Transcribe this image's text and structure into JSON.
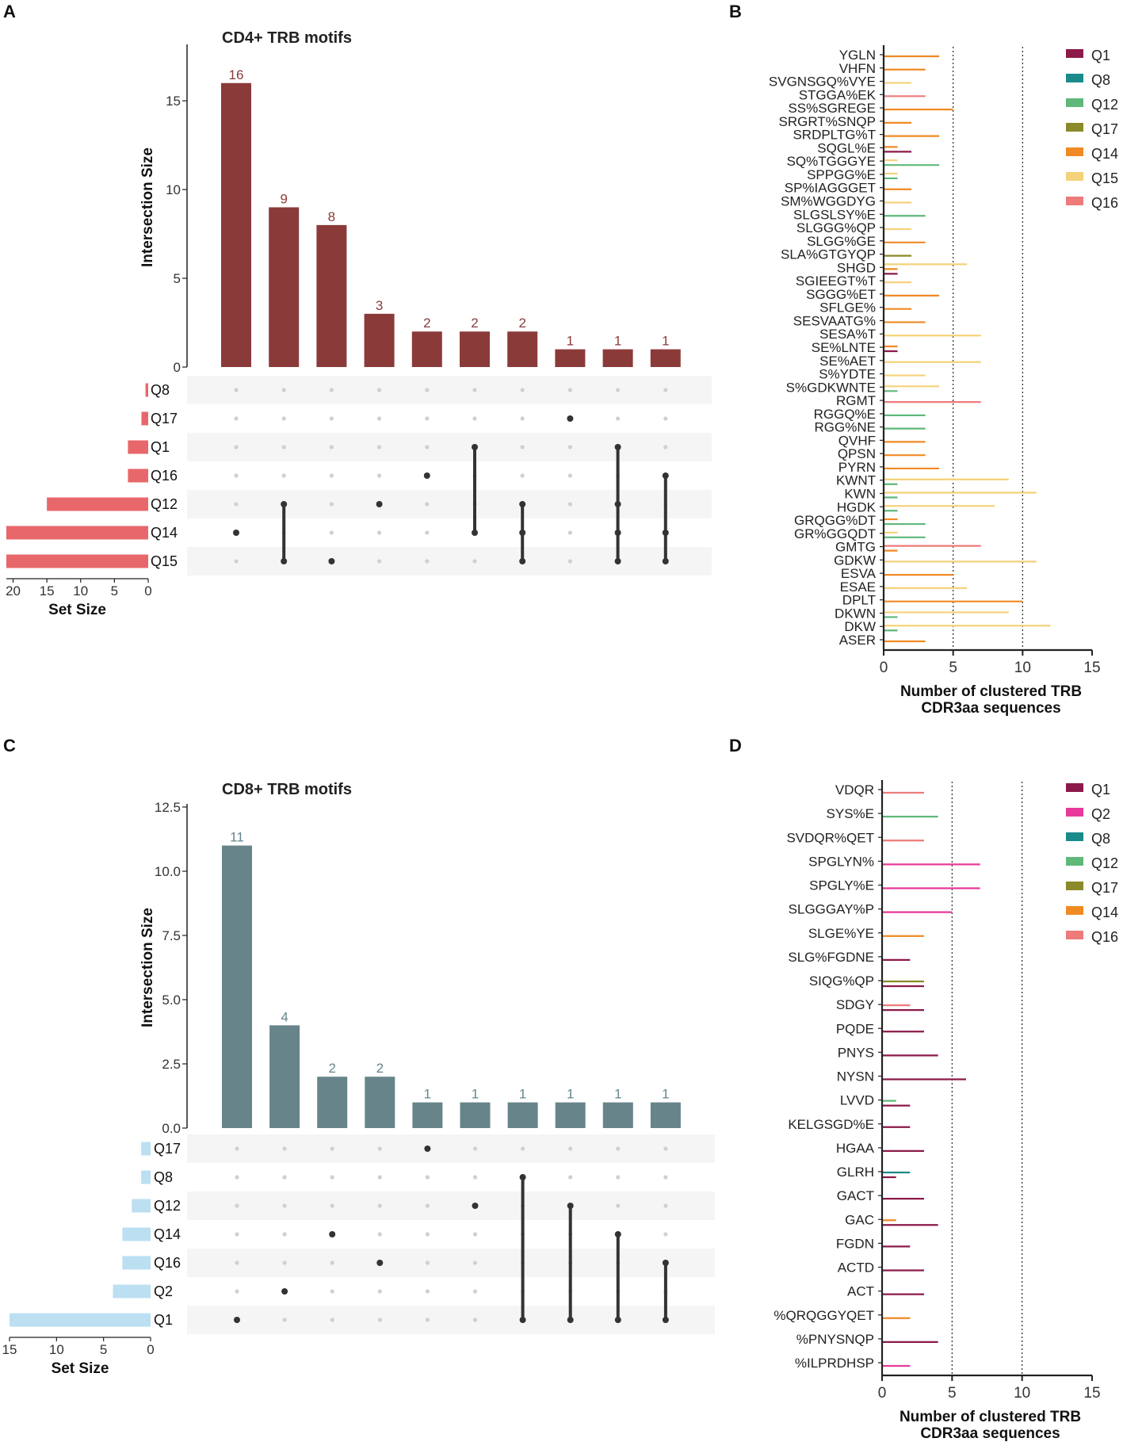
{
  "panels": {
    "A": "A",
    "B": "B",
    "C": "C",
    "D": "D"
  },
  "chart_data": [
    {
      "type": "bar",
      "subtype": "upset",
      "panel": "A",
      "title": "CD4+ TRB motifs",
      "ylabel": "Intersection Size",
      "set_size_label": "Set Size",
      "bar_color": "#8b3a3a",
      "set_bar_color": "#e8676a",
      "ylim": [
        0,
        18
      ],
      "yticks": [
        0,
        5,
        10,
        15
      ],
      "set_xlim": [
        0,
        21
      ],
      "set_xticks": [
        20,
        15,
        10,
        5,
        0
      ],
      "sets": [
        {
          "name": "Q8",
          "size": 0.4
        },
        {
          "name": "Q17",
          "size": 1
        },
        {
          "name": "Q1",
          "size": 3
        },
        {
          "name": "Q16",
          "size": 3
        },
        {
          "name": "Q12",
          "size": 15
        },
        {
          "name": "Q14",
          "size": 21
        },
        {
          "name": "Q15",
          "size": 21
        }
      ],
      "intersections": [
        {
          "sets": [
            "Q14"
          ],
          "size": 16
        },
        {
          "sets": [
            "Q12",
            "Q15"
          ],
          "size": 9
        },
        {
          "sets": [
            "Q15"
          ],
          "size": 8
        },
        {
          "sets": [
            "Q12"
          ],
          "size": 3
        },
        {
          "sets": [
            "Q16"
          ],
          "size": 2
        },
        {
          "sets": [
            "Q1",
            "Q14"
          ],
          "size": 2
        },
        {
          "sets": [
            "Q12",
            "Q14",
            "Q15"
          ],
          "size": 2
        },
        {
          "sets": [
            "Q17"
          ],
          "size": 1
        },
        {
          "sets": [
            "Q1",
            "Q12",
            "Q14",
            "Q15"
          ],
          "size": 1
        },
        {
          "sets": [
            "Q16",
            "Q14",
            "Q15"
          ],
          "size": 1
        }
      ]
    },
    {
      "type": "bar",
      "orientation": "horizontal",
      "panel": "B",
      "xlabel": "Number of clustered TRB CDR3aa sequences",
      "xlabel_lines": [
        "Number of clustered TRB",
        "CDR3aa sequences"
      ],
      "xlim": [
        0,
        15
      ],
      "xticks": [
        0,
        5,
        10,
        15
      ],
      "reference_lines": [
        5,
        10
      ],
      "legend": [
        {
          "name": "Q1",
          "color": "#8b1a4a"
        },
        {
          "name": "Q8",
          "color": "#1a8a8a"
        },
        {
          "name": "Q12",
          "color": "#5fb87a"
        },
        {
          "name": "Q17",
          "color": "#8a8a2a"
        },
        {
          "name": "Q14",
          "color": "#f08a24"
        },
        {
          "name": "Q15",
          "color": "#f5d27a"
        },
        {
          "name": "Q16",
          "color": "#ee7a7a"
        }
      ],
      "categories": [
        "YGLN",
        "VHFN",
        "SVGNSGQ%VYE",
        "STGGA%EK",
        "SS%SGREGE",
        "SRGRT%SNQP",
        "SRDPLTG%T",
        "SQGL%E",
        "SQ%TGGGYE",
        "SPPGG%E",
        "SP%IAGGGET",
        "SM%WGGDYG",
        "SLGSLSY%E",
        "SLGGG%QP",
        "SLGG%GE",
        "SLA%GTGYQP",
        "SHGD",
        "SGIEEGT%T",
        "SGGG%ET",
        "SFLGE%",
        "SESVAATG%",
        "SESA%T",
        "SE%LNTE",
        "SE%AET",
        "S%YDTE",
        "S%GDKWNTE",
        "RGMT",
        "RGGQ%E",
        "RGG%NE",
        "QVHF",
        "QPSN",
        "PYRN",
        "KWNT",
        "KWN",
        "HGDK",
        "GRQGG%DT",
        "GR%GGQDT",
        "GMTG",
        "GDKW",
        "ESVA",
        "ESAE",
        "DPLT",
        "DKWN",
        "DKW",
        "ASER"
      ],
      "bars": [
        [
          [
            "Q14",
            4
          ]
        ],
        [
          [
            "Q14",
            3
          ]
        ],
        [
          [
            "Q15",
            2
          ]
        ],
        [
          [
            "Q16",
            3
          ]
        ],
        [
          [
            "Q14",
            5
          ]
        ],
        [
          [
            "Q14",
            2
          ]
        ],
        [
          [
            "Q14",
            4
          ]
        ],
        [
          [
            "Q14",
            1
          ],
          [
            "Q1",
            2
          ]
        ],
        [
          [
            "Q15",
            1
          ],
          [
            "Q12",
            4
          ]
        ],
        [
          [
            "Q15",
            1
          ],
          [
            "Q12",
            1
          ]
        ],
        [
          [
            "Q14",
            2
          ]
        ],
        [
          [
            "Q15",
            2
          ]
        ],
        [
          [
            "Q12",
            3
          ]
        ],
        [
          [
            "Q15",
            2
          ]
        ],
        [
          [
            "Q14",
            3
          ]
        ],
        [
          [
            "Q17",
            2
          ]
        ],
        [
          [
            "Q15",
            6
          ],
          [
            "Q14",
            1
          ],
          [
            "Q1",
            1
          ]
        ],
        [
          [
            "Q15",
            2
          ]
        ],
        [
          [
            "Q14",
            4
          ]
        ],
        [
          [
            "Q14",
            2
          ]
        ],
        [
          [
            "Q14",
            3
          ]
        ],
        [
          [
            "Q15",
            7
          ]
        ],
        [
          [
            "Q14",
            1
          ],
          [
            "Q1",
            1
          ]
        ],
        [
          [
            "Q15",
            7
          ]
        ],
        [
          [
            "Q15",
            3
          ]
        ],
        [
          [
            "Q15",
            4
          ],
          [
            "Q12",
            1
          ]
        ],
        [
          [
            "Q16",
            7
          ]
        ],
        [
          [
            "Q12",
            3
          ]
        ],
        [
          [
            "Q12",
            3
          ]
        ],
        [
          [
            "Q14",
            3
          ]
        ],
        [
          [
            "Q14",
            3
          ]
        ],
        [
          [
            "Q14",
            4
          ]
        ],
        [
          [
            "Q15",
            9
          ],
          [
            "Q12",
            1
          ]
        ],
        [
          [
            "Q15",
            11
          ],
          [
            "Q12",
            1
          ]
        ],
        [
          [
            "Q15",
            8
          ],
          [
            "Q12",
            1
          ]
        ],
        [
          [
            "Q14",
            1
          ],
          [
            "Q12",
            3
          ]
        ],
        [
          [
            "Q15",
            1
          ],
          [
            "Q12",
            3
          ]
        ],
        [
          [
            "Q16",
            7
          ],
          [
            "Q14",
            1
          ]
        ],
        [
          [
            "Q15",
            11
          ]
        ],
        [
          [
            "Q14",
            5
          ]
        ],
        [
          [
            "Q15",
            6
          ]
        ],
        [
          [
            "Q14",
            10
          ]
        ],
        [
          [
            "Q15",
            9
          ],
          [
            "Q12",
            1
          ]
        ],
        [
          [
            "Q15",
            12
          ],
          [
            "Q12",
            1
          ]
        ],
        [
          [
            "Q14",
            3
          ]
        ]
      ]
    },
    {
      "type": "bar",
      "subtype": "upset",
      "panel": "C",
      "title": "CD8+ TRB motifs",
      "ylabel": "Intersection Size",
      "set_size_label": "Set Size",
      "bar_color": "#67848a",
      "set_bar_color": "#bcdff2",
      "ylim": [
        0,
        12.5
      ],
      "yticks": [
        0.0,
        2.5,
        5.0,
        7.5,
        10.0,
        12.5
      ],
      "set_xlim": [
        0,
        15
      ],
      "set_xticks": [
        15,
        10,
        5,
        0
      ],
      "sets": [
        {
          "name": "Q17",
          "size": 1
        },
        {
          "name": "Q8",
          "size": 1
        },
        {
          "name": "Q12",
          "size": 2
        },
        {
          "name": "Q14",
          "size": 3
        },
        {
          "name": "Q16",
          "size": 3
        },
        {
          "name": "Q2",
          "size": 4
        },
        {
          "name": "Q1",
          "size": 15
        }
      ],
      "intersections": [
        {
          "sets": [
            "Q1"
          ],
          "size": 11
        },
        {
          "sets": [
            "Q2"
          ],
          "size": 4
        },
        {
          "sets": [
            "Q14"
          ],
          "size": 2
        },
        {
          "sets": [
            "Q16"
          ],
          "size": 2
        },
        {
          "sets": [
            "Q17"
          ],
          "size": 1
        },
        {
          "sets": [
            "Q12"
          ],
          "size": 1
        },
        {
          "sets": [
            "Q8",
            "Q1"
          ],
          "size": 1
        },
        {
          "sets": [
            "Q12",
            "Q1"
          ],
          "size": 1
        },
        {
          "sets": [
            "Q14",
            "Q1"
          ],
          "size": 1
        },
        {
          "sets": [
            "Q16",
            "Q1"
          ],
          "size": 1
        }
      ]
    },
    {
      "type": "bar",
      "orientation": "horizontal",
      "panel": "D",
      "xlabel": "Number of clustered TRB CDR3aa sequences",
      "xlabel_lines": [
        "Number of clustered TRB",
        "CDR3aa sequences"
      ],
      "xlim": [
        0,
        15
      ],
      "xticks": [
        0,
        5,
        10,
        15
      ],
      "reference_lines": [
        5,
        10
      ],
      "legend": [
        {
          "name": "Q1",
          "color": "#8b1a4a"
        },
        {
          "name": "Q2",
          "color": "#e8399a"
        },
        {
          "name": "Q8",
          "color": "#1a8a8a"
        },
        {
          "name": "Q12",
          "color": "#5fb87a"
        },
        {
          "name": "Q17",
          "color": "#8a8a2a"
        },
        {
          "name": "Q14",
          "color": "#f08a24"
        },
        {
          "name": "Q16",
          "color": "#ee7a7a"
        }
      ],
      "categories": [
        "VDQR",
        "SYS%E",
        "SVDQR%QET",
        "SPGLYN%",
        "SPGLY%E",
        "SLGGGAY%P",
        "SLGE%YE",
        "SLG%FGDNE",
        "SIQG%QP",
        "SDGY",
        "PQDE",
        "PNYS",
        "NYSN",
        "LVVD",
        "KELGSGD%E",
        "HGAA",
        "GLRH",
        "GACT",
        "GAC",
        "FGDN",
        "ACTD",
        "ACT",
        "%QRQGGYQET",
        "%PNYSNQP",
        "%ILPRDHSP"
      ],
      "bars": [
        [
          [
            "Q16",
            3
          ]
        ],
        [
          [
            "Q12",
            4
          ]
        ],
        [
          [
            "Q16",
            3
          ]
        ],
        [
          [
            "Q2",
            7
          ]
        ],
        [
          [
            "Q2",
            7
          ]
        ],
        [
          [
            "Q2",
            5
          ]
        ],
        [
          [
            "Q14",
            3
          ]
        ],
        [
          [
            "Q1",
            2
          ]
        ],
        [
          [
            "Q17",
            3
          ],
          [
            "Q1",
            3
          ]
        ],
        [
          [
            "Q16",
            2
          ],
          [
            "Q1",
            3
          ]
        ],
        [
          [
            "Q1",
            3
          ]
        ],
        [
          [
            "Q1",
            4
          ]
        ],
        [
          [
            "Q1",
            6
          ]
        ],
        [
          [
            "Q12",
            1
          ],
          [
            "Q1",
            2
          ]
        ],
        [
          [
            "Q1",
            2
          ]
        ],
        [
          [
            "Q1",
            3
          ]
        ],
        [
          [
            "Q8",
            2
          ],
          [
            "Q1",
            1
          ]
        ],
        [
          [
            "Q1",
            3
          ]
        ],
        [
          [
            "Q14",
            1
          ],
          [
            "Q1",
            4
          ]
        ],
        [
          [
            "Q1",
            2
          ]
        ],
        [
          [
            "Q1",
            3
          ]
        ],
        [
          [
            "Q1",
            3
          ]
        ],
        [
          [
            "Q14",
            2
          ]
        ],
        [
          [
            "Q1",
            4
          ]
        ],
        [
          [
            "Q2",
            2
          ]
        ]
      ]
    }
  ]
}
